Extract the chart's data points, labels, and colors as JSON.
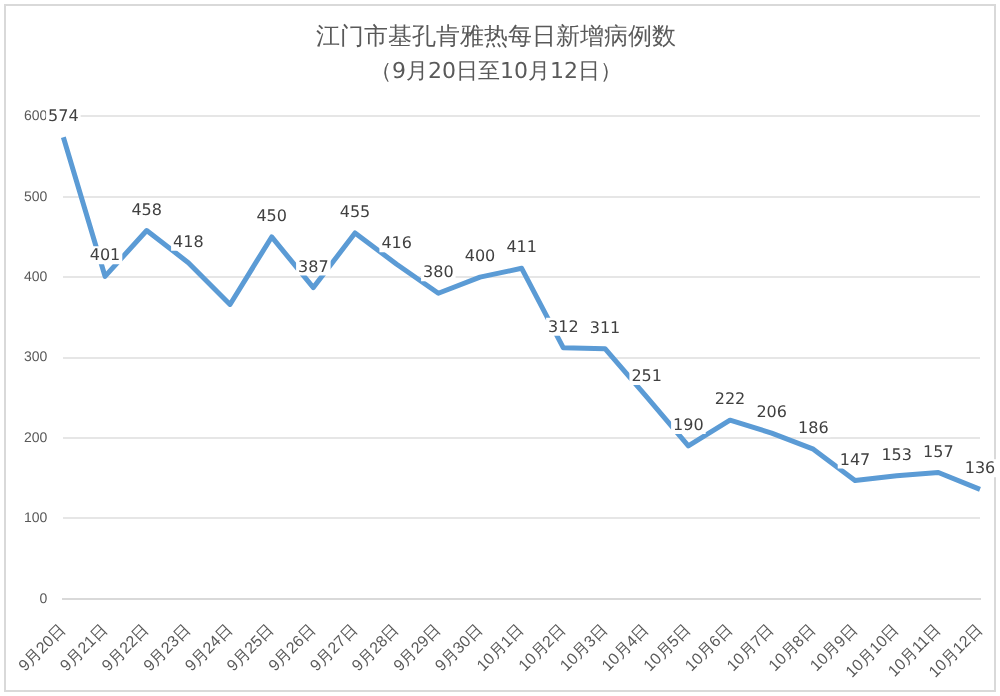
{
  "chart_data": {
    "type": "line",
    "title": "江门市基孔肯雅热每日新增病例数",
    "subtitle": "（9月20日至10月12日）",
    "categories": [
      "9月20日",
      "9月21日",
      "9月22日",
      "9月23日",
      "9月24日",
      "9月25日",
      "9月26日",
      "9月27日",
      "9月28日",
      "9月29日",
      "9月30日",
      "10月1日",
      "10月2日",
      "10月3日",
      "10月4日",
      "10月5日",
      "10月6日",
      "10月7日",
      "10月8日",
      "10月9日",
      "10月10日",
      "10月11日",
      "10月12日"
    ],
    "series": [
      {
        "color": "#5b9bd5",
        "values": [
          574,
          401,
          458,
          418,
          366,
          450,
          387,
          455,
          416,
          380,
          400,
          411,
          312,
          311,
          251,
          190,
          222,
          206,
          186,
          147,
          153,
          157,
          136
        ],
        "value_labels": [
          "574",
          "401",
          "458",
          "418",
          null,
          "450",
          "387",
          "455",
          "416",
          "380",
          "400",
          "411",
          "312",
          "311",
          "251",
          "190",
          "222",
          "206",
          "186",
          "147",
          "153",
          "157",
          "136"
        ]
      }
    ],
    "ylim": [
      0,
      600
    ],
    "yticks": [
      0,
      100,
      200,
      300,
      400,
      500,
      600
    ],
    "grid": "y",
    "legend": false,
    "marker": "none",
    "line_style": "solid"
  }
}
